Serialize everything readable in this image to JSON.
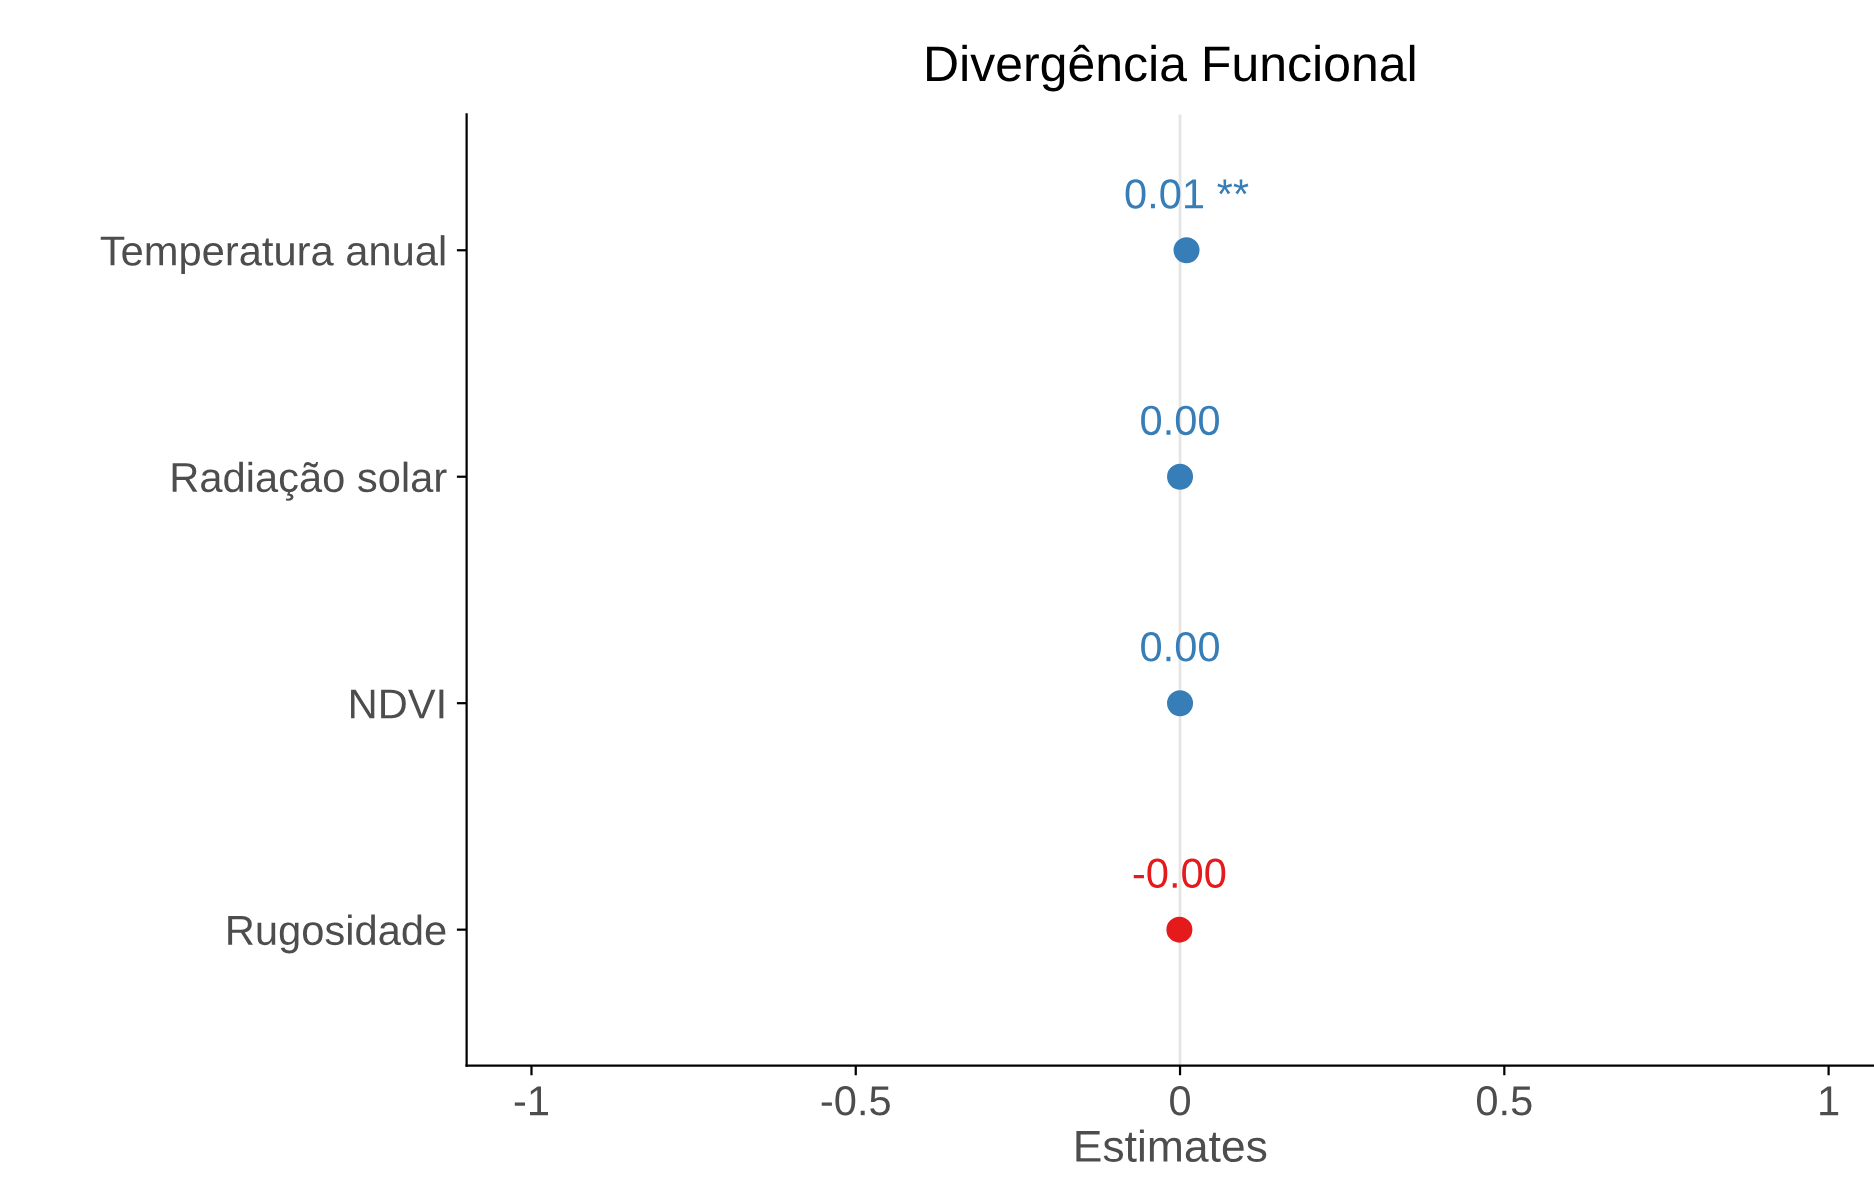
{
  "chart_data": {
    "type": "scatter",
    "orientation": "horizontal",
    "title": "Divergência Funcional",
    "xlabel": "Estimates",
    "categories": [
      "Temperatura anual",
      "Radiação solar",
      "NDVI",
      "Rugosidade"
    ],
    "values": [
      0.01,
      0.0,
      0.0,
      -0.001
    ],
    "colors": [
      "#377eb8",
      "#377eb8",
      "#377eb8",
      "#e41a1c"
    ],
    "value_labels": [
      "0.01 **",
      "0.00",
      "0.00",
      "-0.00"
    ],
    "xlim": [
      -1.1,
      1.07
    ],
    "xticks": [
      -1,
      -0.5,
      0,
      0.5,
      1
    ],
    "ref_lines": [
      {
        "axis": "x",
        "value": 0,
        "color": "#e5e5e5"
      }
    ],
    "marker": "circle",
    "grid": false,
    "legend": false
  }
}
